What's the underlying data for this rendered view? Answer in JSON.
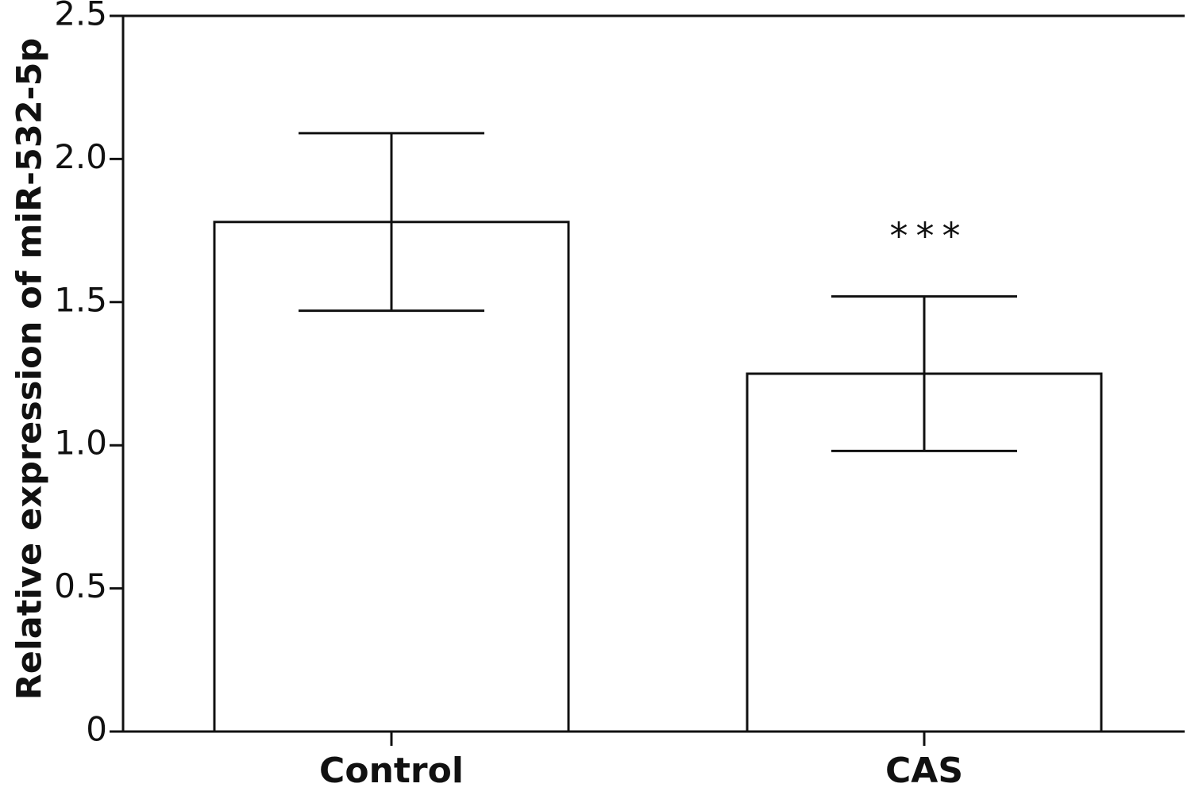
{
  "chart_data": {
    "type": "bar",
    "categories": [
      "Control",
      "CAS"
    ],
    "series": [
      {
        "values": [
          1.78,
          1.25
        ],
        "error": [
          0.31,
          0.27
        ]
      }
    ],
    "annotations": [
      "",
      "***"
    ],
    "title": "",
    "xlabel": "",
    "ylabel": "Relative expression of miR-532-5p",
    "ylim": [
      0,
      2.5
    ],
    "yticks": [
      0,
      0.5,
      1.0,
      1.5,
      2.0,
      2.5
    ],
    "ytick_labels": [
      "0",
      "0.5",
      "1.0",
      "1.5",
      "2.0",
      "2.5"
    ],
    "grid": false,
    "legend": "none",
    "colors": {
      "bar_fill": "#ffffff",
      "stroke": "#111111"
    }
  }
}
